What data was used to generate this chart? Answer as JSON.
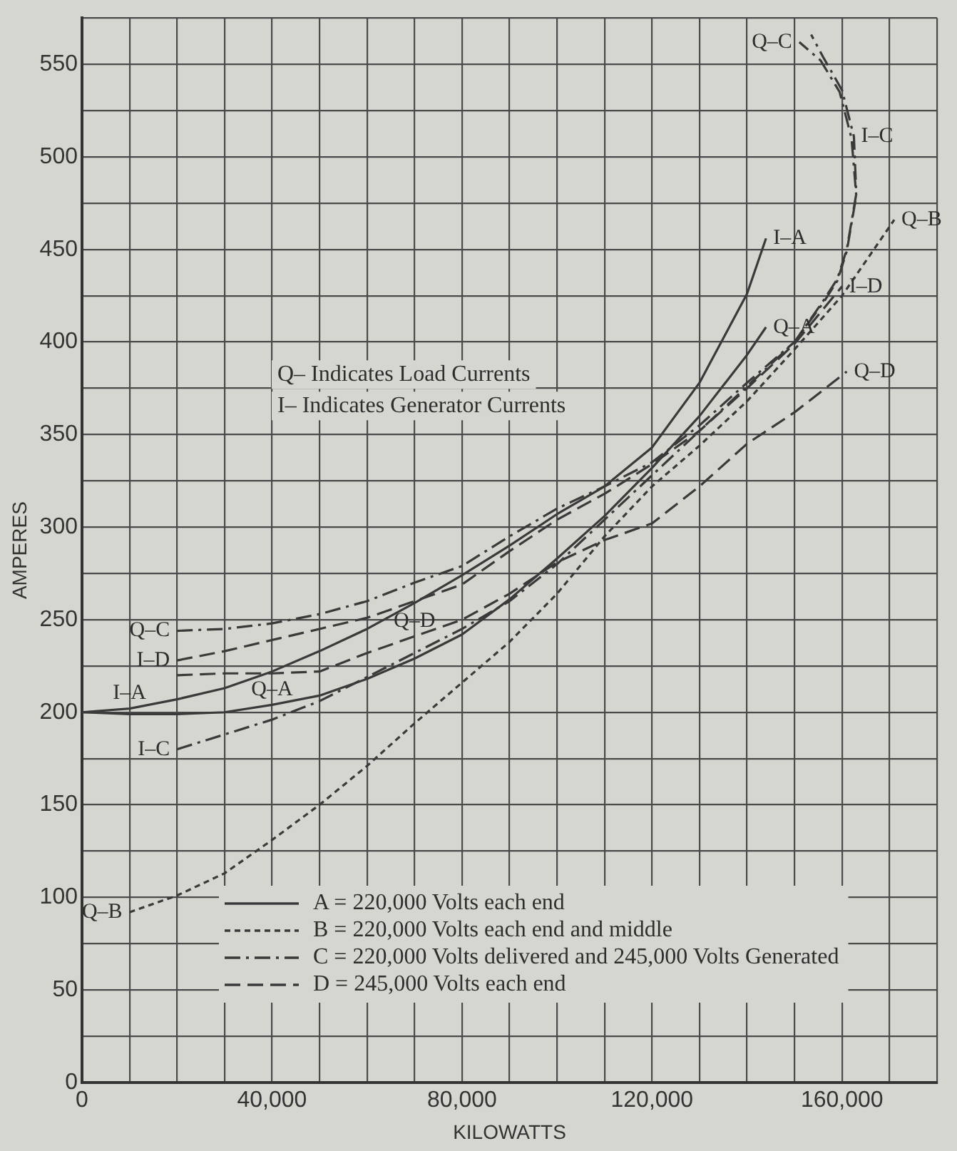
{
  "chart_data": {
    "type": "line",
    "xlabel": "KILOWATTS",
    "ylabel": "AMPERES",
    "xlim": [
      0,
      180000
    ],
    "ylim": [
      0,
      575
    ],
    "xticks": [
      0,
      {
        "value": 10000,
        "label": null
      },
      {
        "value": 20000,
        "label": null
      },
      {
        "value": 30000,
        "label": null
      },
      {
        "value": 40000,
        "label": "40,000"
      },
      {
        "value": 50000,
        "label": null
      },
      {
        "value": 60000,
        "label": null
      },
      {
        "value": 70000,
        "label": null
      },
      {
        "value": 80000,
        "label": "80,000"
      },
      {
        "value": 90000,
        "label": null
      },
      {
        "value": 100000,
        "label": null
      },
      {
        "value": 110000,
        "label": null
      },
      {
        "value": 120000,
        "label": "120,000"
      },
      {
        "value": 130000,
        "label": null
      },
      {
        "value": 140000,
        "label": null
      },
      {
        "value": 150000,
        "label": null
      },
      {
        "value": 160000,
        "label": "160,000"
      },
      {
        "value": 170000,
        "label": null
      },
      {
        "value": 180000,
        "label": null
      }
    ],
    "yticks": [
      0,
      {
        "value": 25,
        "label": null
      },
      50,
      {
        "value": 75,
        "label": null
      },
      100,
      {
        "value": 125,
        "label": null
      },
      150,
      {
        "value": 175,
        "label": null
      },
      200,
      {
        "value": 225,
        "label": null
      },
      250,
      {
        "value": 275,
        "label": null
      },
      300,
      {
        "value": 325,
        "label": null
      },
      350,
      {
        "value": 375,
        "label": null
      },
      400,
      {
        "value": 425,
        "label": null
      },
      450,
      {
        "value": 475,
        "label": null
      },
      500,
      {
        "value": 525,
        "label": null
      },
      550,
      {
        "value": 575,
        "label": null
      }
    ],
    "grid": true,
    "legend": "bottom left",
    "marker": "none",
    "series": [
      {
        "name": "A = 220,000 Volts each end",
        "color": "#3a3a3a",
        "line_style": "solid",
        "x": [
          0,
          10000,
          20000,
          30000,
          40000,
          50000,
          60000,
          70000,
          80000,
          90000,
          100000,
          110000,
          120000,
          130000,
          140000,
          144000,
          null,
          0,
          10000,
          20000,
          30000,
          40000,
          50000,
          60000,
          70000,
          80000,
          90000,
          100000,
          110000,
          120000,
          130000,
          140000,
          144000
        ],
        "values": [
          200,
          202,
          207,
          213,
          222,
          233,
          245,
          259,
          274,
          290,
          307,
          322,
          343,
          378,
          426,
          456,
          null,
          200,
          199,
          199,
          200,
          204,
          209,
          218,
          229,
          242,
          261,
          283,
          306,
          332,
          360,
          393,
          408
        ]
      },
      {
        "name": "B = 220,000 Volts each end and middle",
        "color": "#3a3a3a",
        "line_style": "dotted",
        "x": [
          10000,
          20000,
          30000,
          40000,
          50000,
          60000,
          70000,
          80000,
          90000,
          100000,
          110000,
          120000,
          130000,
          140000,
          150000,
          160000,
          171000
        ],
        "values": [
          92,
          101,
          113,
          131,
          150,
          171,
          194,
          216,
          238,
          264,
          295,
          322,
          344,
          368,
          396,
          425,
          466
        ]
      },
      {
        "name": "C = 220,000 Volts delivered and 245,000 Volts Generated",
        "color": "#3a3a3a",
        "line_style": "dashdot",
        "x": [
          20000,
          30000,
          40000,
          50000,
          60000,
          70000,
          80000,
          90000,
          100000,
          110000,
          120000,
          130000,
          140000,
          150000,
          156000,
          159000,
          161000,
          163000,
          162500,
          160000,
          156000,
          153500,
          null,
          20000,
          30000,
          40000,
          50000,
          60000,
          70000,
          80000,
          90000,
          100000,
          110000,
          120000,
          130000,
          140000,
          150000,
          156000,
          159000,
          161000,
          163000,
          162000,
          159500,
          155500,
          151000
        ],
        "values": [
          180,
          188,
          196,
          206,
          219,
          232,
          245,
          260,
          280,
          304,
          328,
          352,
          376,
          400,
          422,
          434,
          450,
          480,
          511,
          536,
          554,
          566,
          null,
          244,
          245,
          248,
          253,
          260,
          270,
          279,
          295,
          310,
          322,
          335,
          355,
          378,
          400,
          421,
          433,
          449,
          479,
          510,
          535,
          552,
          562
        ]
      },
      {
        "name": "D = 245,000 Volts each end",
        "color": "#3a3a3a",
        "line_style": "dashed",
        "x": [
          20000,
          30000,
          40000,
          50000,
          60000,
          70000,
          80000,
          90000,
          100000,
          110000,
          120000,
          130000,
          140000,
          150000,
          160000,
          null,
          20000,
          30000,
          40000,
          50000,
          60000,
          70000,
          80000,
          90000,
          100000,
          110000,
          120000,
          130000,
          140000,
          150000,
          161000
        ],
        "values": [
          228,
          233,
          239,
          245,
          251,
          260,
          269,
          287,
          304,
          318,
          334,
          352,
          375,
          399,
          430,
          null,
          220,
          221,
          221,
          222,
          232,
          241,
          250,
          264,
          281,
          293,
          302,
          322,
          345,
          362,
          384
        ]
      }
    ],
    "annotations": [
      "Q– Indicates Load Currents",
      "I– Indicates Generator Currents",
      {
        "text": "I–A",
        "x": 10000,
        "y": 202
      },
      {
        "text": "Q–A",
        "x": 40000,
        "y": 204
      },
      {
        "text": "Q–C",
        "x": 20000,
        "y": 244
      },
      {
        "text": "I–D",
        "x": 20000,
        "y": 228
      },
      {
        "text": "Q–D",
        "x": 70000,
        "y": 241
      },
      {
        "text": "I–C",
        "x": 20000,
        "y": 180
      },
      {
        "text": "Q–B",
        "x": 10000,
        "y": 92
      },
      {
        "text": "I–A",
        "x": 144000,
        "y": 456
      },
      {
        "text": "Q–A",
        "x": 144000,
        "y": 408
      },
      {
        "text": "Q–D",
        "x": 161000,
        "y": 384
      },
      {
        "text": "Q–C",
        "x": 151000,
        "y": 562
      },
      {
        "text": "I–C",
        "x": 162500,
        "y": 511
      },
      {
        "text": "I–D",
        "x": 160000,
        "y": 430
      },
      {
        "text": "Q–B",
        "x": 171000,
        "y": 466
      }
    ]
  }
}
